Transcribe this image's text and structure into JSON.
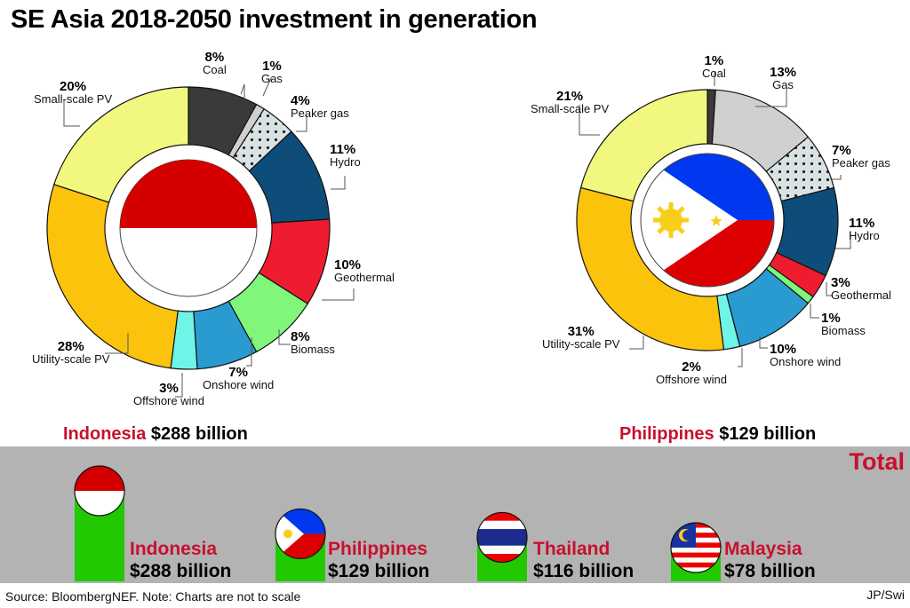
{
  "title": "SE Asia 2018-2050 investment in generation",
  "chart_data": [
    {
      "type": "pie",
      "variant": "donut",
      "country": "Indonesia",
      "total": "$288 billion",
      "categories": [
        "Coal",
        "Gas",
        "Peaker gas",
        "Hydro",
        "Geothermal",
        "Biomass",
        "Onshore wind",
        "Offshore wind",
        "Utility-scale PV",
        "Small-scale PV"
      ],
      "values": [
        8,
        1,
        4,
        11,
        10,
        8,
        7,
        3,
        28,
        20
      ],
      "value_labels": [
        "8%",
        "1%",
        "4%",
        "11%",
        "10%",
        "8%",
        "7%",
        "3%",
        "28%",
        "20%"
      ]
    },
    {
      "type": "pie",
      "variant": "donut",
      "country": "Philippines",
      "total": "$129 billion",
      "categories": [
        "Coal",
        "Gas",
        "Peaker gas",
        "Hydro",
        "Geothermal",
        "Biomass",
        "Onshore wind",
        "Offshore wind",
        "Utility-scale PV",
        "Small-scale PV"
      ],
      "values": [
        1,
        13,
        7,
        11,
        3,
        1,
        10,
        2,
        31,
        21
      ],
      "value_labels": [
        "1%",
        "13%",
        "7%",
        "11%",
        "3%",
        "1%",
        "10%",
        "2%",
        "31%",
        "21%"
      ]
    },
    {
      "type": "bar",
      "title": "Total",
      "categories": [
        "Indonesia",
        "Philippines",
        "Thailand",
        "Malaysia"
      ],
      "values": [
        288,
        129,
        116,
        78
      ],
      "value_labels": [
        "$288 billion",
        "$129 billion",
        "$116 billion",
        "$78 billion"
      ],
      "unit": "billion USD"
    }
  ],
  "colors": {
    "Coal": "#3a3a3a",
    "Gas": "#d0d0d0",
    "Peaker gas": "#d9e3e3",
    "Hydro": "#0e4c7a",
    "Geothermal": "#ee1c2e",
    "Biomass": "#80f77a",
    "Onshore wind": "#2a9bd0",
    "Offshore wind": "#6ff5e8",
    "Utility-scale PV": "#fcc30d",
    "Small-scale PV": "#f2f77f",
    "bar": "#22c900",
    "panel": "#b3b3b3",
    "accent": "#c8102e"
  },
  "footer": {
    "source": "Source: BloombergNEF. Note: Charts are not to scale",
    "credit": "JP/Swi"
  }
}
